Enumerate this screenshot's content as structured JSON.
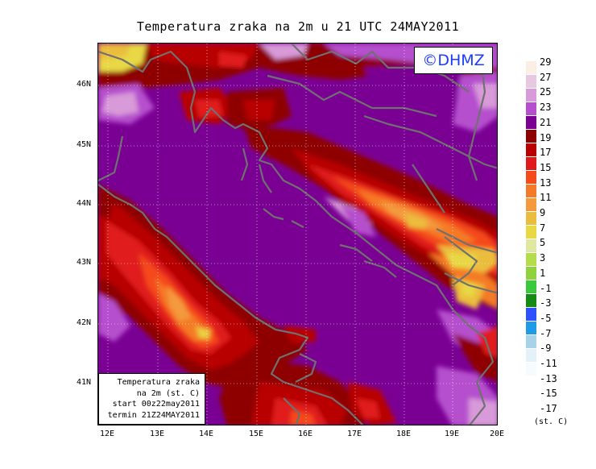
{
  "title": "Temperatura zraka na 2m u 21 UTC 24MAY2011",
  "logo": "©DHMZ",
  "info_box": {
    "line1": "Temperatura zraka",
    "line2": "na 2m (st. C)",
    "line3": "start 00z22may2011",
    "line4": "termin 21Z24MAY2011"
  },
  "latitude_labels": [
    "46N",
    "45N",
    "44N",
    "43N",
    "42N",
    "41N"
  ],
  "longitude_labels": [
    "12E",
    "13E",
    "14E",
    "15E",
    "16E",
    "17E",
    "18E",
    "19E",
    "20E"
  ],
  "colorbar": {
    "labels": [
      "29",
      "27",
      "25",
      "23",
      "21",
      "19",
      "17",
      "15",
      "13",
      "11",
      "9",
      "7",
      "5",
      "3",
      "1",
      "-1",
      "-3",
      "-5",
      "-7",
      "-9",
      "-11",
      "-13",
      "-15",
      "-17"
    ],
    "colors": [
      "#fbeee4",
      "#e8c8e0",
      "#d89ad8",
      "#b54fcd",
      "#7a0094",
      "#8e0000",
      "#b80000",
      "#e01a1a",
      "#f54a1a",
      "#f47a28",
      "#f49a3c",
      "#ebbd3c",
      "#e8d844",
      "#dfe8a0",
      "#b4dc4c",
      "#8ed23c",
      "#3cc83c",
      "#148c14",
      "#2e50ff",
      "#1e9ae6",
      "#a8d2e8",
      "#e2f2f8",
      "#f6fbfd"
    ],
    "unit": "(st. C)"
  },
  "map_colors": {
    "sea": "#7a0094",
    "coast": "#707070",
    "grid": "#ffffff"
  }
}
